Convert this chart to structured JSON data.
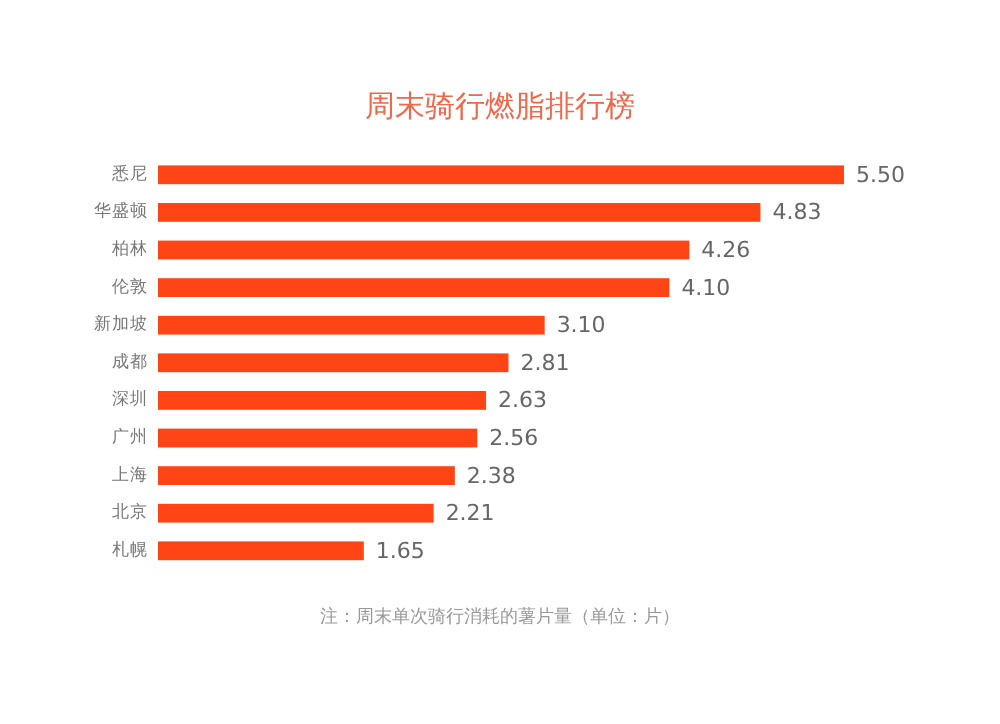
{
  "chart_data": {
    "type": "bar",
    "orientation": "horizontal",
    "title": "周末骑行燃脂排行榜",
    "categories": [
      "悉尼",
      "华盛顿",
      "柏林",
      "伦敦",
      "新加坡",
      "成都",
      "深圳",
      "广州",
      "上海",
      "北京",
      "札幌"
    ],
    "values": [
      5.5,
      4.83,
      4.26,
      4.1,
      3.1,
      2.81,
      2.63,
      2.56,
      2.38,
      2.21,
      1.65
    ],
    "value_labels": [
      "5.50",
      "4.83",
      "4.26",
      "4.10",
      "3.10",
      "2.81",
      "2.63",
      "2.56",
      "2.38",
      "2.21",
      "1.65"
    ],
    "color": "#ff4516",
    "xlim": [
      0,
      5.5
    ],
    "annotations": [
      "注：周末单次骑行消耗的薯片量（单位：片）"
    ]
  }
}
